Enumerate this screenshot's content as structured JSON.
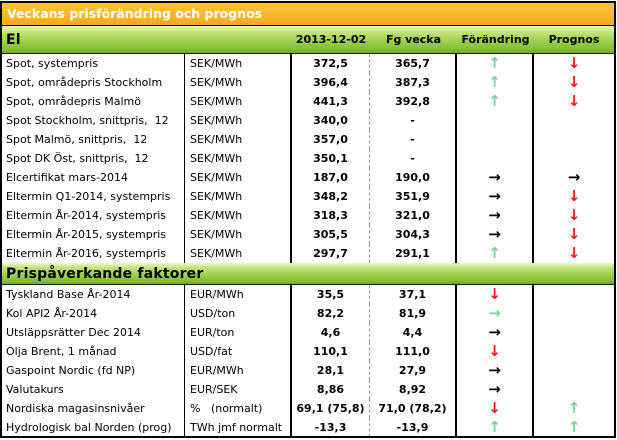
{
  "title": "Veckans prisförändring och prognos",
  "columns": {
    "date": "2013-12-02",
    "prev": "Fg vecka",
    "change": "Förändring",
    "forecast": "Prognos"
  },
  "colors": {
    "orange_header": "#fab62c",
    "green_band": "#8cc63f",
    "arrow_green": "#6fd893",
    "arrow_red": "#ff1414",
    "arrow_black": "#000000"
  },
  "sections": [
    {
      "label": "El",
      "rows": [
        {
          "label": "Spot, systempris",
          "unit": "SEK/MWh",
          "current": "372,5",
          "prev": "365,7",
          "change": "green-up",
          "forecast": "red-down"
        },
        {
          "label": "Spot, områdepris Stockholm",
          "unit": "SEK/MWh",
          "current": "396,4",
          "prev": "387,3",
          "change": "green-up",
          "forecast": "red-down"
        },
        {
          "label": "Spot, områdepris Malmö",
          "unit": "SEK/MWh",
          "current": "441,3",
          "prev": "392,8",
          "change": "green-up",
          "forecast": "red-down"
        },
        {
          "label": "Spot Stockholm, snittpris,  12",
          "unit": "SEK/MWh",
          "current": "340,0",
          "prev": "-",
          "change": "",
          "forecast": ""
        },
        {
          "label": "Spot Malmö, snittpris,  12",
          "unit": "SEK/MWh",
          "current": "357,0",
          "prev": "-",
          "change": "",
          "forecast": ""
        },
        {
          "label": "Spot DK Öst, snittpris,  12",
          "unit": "SEK/MWh",
          "current": "350,1",
          "prev": "-",
          "change": "",
          "forecast": ""
        },
        {
          "label": "Elcertifikat mars-2014",
          "unit": "SEK/MWh",
          "current": "187,0",
          "prev": "190,0",
          "change": "black-right",
          "forecast": "black-right"
        },
        {
          "label": "Eltermin Q1-2014, systempris",
          "unit": "SEK/MWh",
          "current": "348,2",
          "prev": "351,9",
          "change": "black-right",
          "forecast": "red-down"
        },
        {
          "label": "Eltermin År-2014, systempris",
          "unit": "SEK/MWh",
          "current": "318,3",
          "prev": "321,0",
          "change": "black-right",
          "forecast": "red-down"
        },
        {
          "label": "Eltermin År-2015, systempris",
          "unit": "SEK/MWh",
          "current": "305,5",
          "prev": "304,3",
          "change": "black-right",
          "forecast": "red-down"
        },
        {
          "label": "Eltermin År-2016, systempris",
          "unit": "SEK/MWh",
          "current": "297,7",
          "prev": "291,1",
          "change": "green-up",
          "forecast": "red-down"
        }
      ]
    },
    {
      "label": "Prispåverkande faktorer",
      "rows": [
        {
          "label": "Tyskland Base År-2014",
          "unit": "EUR/MWh",
          "current": "35,5",
          "prev": "37,1",
          "change": "red-down",
          "forecast": ""
        },
        {
          "label": "Kol API2 År-2014",
          "unit": "USD/ton",
          "current": "82,2",
          "prev": "81,9",
          "change": "green-right",
          "forecast": ""
        },
        {
          "label": "Utsläppsrätter Dec 2014",
          "unit": "EUR/ton",
          "current": "4,6",
          "prev": "4,4",
          "change": "black-right",
          "forecast": ""
        },
        {
          "label": "Olja Brent, 1 månad",
          "unit": "USD/fat",
          "current": "110,1",
          "prev": "111,0",
          "change": "red-down",
          "forecast": ""
        },
        {
          "label": "Gaspoint Nordic (fd NP)",
          "unit": "EUR/MWh",
          "current": "28,1",
          "prev": "27,9",
          "change": "black-right",
          "forecast": ""
        },
        {
          "label": "Valutakurs",
          "unit": "EUR/SEK",
          "current": "8,86",
          "prev": "8,92",
          "change": "black-right",
          "forecast": ""
        },
        {
          "label": "Nordiska magasinsnivåer",
          "unit": "%   (normalt)",
          "current": "69,1 (75,8)",
          "prev": "71,0 (78,2)",
          "change": "red-down",
          "forecast": "green-up"
        },
        {
          "label": "Hydrologisk bal Norden (prog)",
          "unit": "TWh jmf normalt",
          "current": "-13,3",
          "prev": "-13,9",
          "change": "green-up",
          "forecast": "green-up"
        }
      ]
    }
  ]
}
